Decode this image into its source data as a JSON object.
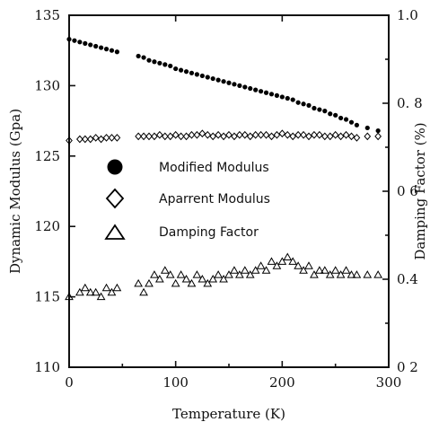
{
  "chart_data": {
    "type": "scatter",
    "title": "",
    "xlabel": "Temperature (K)",
    "ylabel": "Dynamic Modulus (Gpa)",
    "y2label": "Damping Factor (%)",
    "xlim": [
      0,
      300
    ],
    "ylim": [
      110,
      135
    ],
    "y2lim": [
      0.2,
      1.0
    ],
    "xticks": [
      0,
      100,
      200,
      300
    ],
    "xtick_labels": [
      "0",
      "100",
      "200",
      "300"
    ],
    "yticks": [
      110,
      115,
      120,
      125,
      130,
      135
    ],
    "ytick_labels": [
      "110",
      "115",
      "120",
      "125",
      "130",
      "135"
    ],
    "y2ticks": [
      0.2,
      0.4,
      0.6,
      0.8,
      1.0
    ],
    "y2tick_labels": [
      "0 2",
      "0.4",
      "0 6",
      "0. 8",
      "1.0"
    ],
    "grid": false,
    "legend_position": "left-center",
    "series": [
      {
        "name": "Modified Modulus",
        "marker": "filled-circle",
        "axis": "left",
        "x": [
          0,
          5,
          10,
          15,
          20,
          25,
          30,
          35,
          40,
          45,
          65,
          70,
          75,
          80,
          85,
          90,
          95,
          100,
          105,
          110,
          115,
          120,
          125,
          130,
          135,
          140,
          145,
          150,
          155,
          160,
          165,
          170,
          175,
          180,
          185,
          190,
          195,
          200,
          205,
          210,
          215,
          220,
          225,
          230,
          235,
          240,
          245,
          250,
          255,
          260,
          265,
          270,
          280,
          290
        ],
        "y": [
          133.3,
          133.2,
          133.1,
          133.0,
          132.9,
          132.8,
          132.7,
          132.6,
          132.5,
          132.4,
          132.1,
          132.0,
          131.8,
          131.7,
          131.6,
          131.5,
          131.4,
          131.2,
          131.1,
          131.0,
          130.9,
          130.8,
          130.7,
          130.6,
          130.5,
          130.4,
          130.3,
          130.2,
          130.1,
          130.0,
          129.9,
          129.8,
          129.7,
          129.6,
          129.5,
          129.4,
          129.3,
          129.2,
          129.1,
          129.0,
          128.8,
          128.7,
          128.6,
          128.4,
          128.3,
          128.2,
          128.0,
          127.9,
          127.7,
          127.6,
          127.4,
          127.2,
          127.0,
          126.8
        ]
      },
      {
        "name": "Aparrent Modulus",
        "marker": "open-diamond",
        "axis": "left",
        "x": [
          0,
          10,
          15,
          20,
          25,
          30,
          35,
          40,
          45,
          65,
          70,
          75,
          80,
          85,
          90,
          95,
          100,
          105,
          110,
          115,
          120,
          125,
          130,
          135,
          140,
          145,
          150,
          155,
          160,
          165,
          170,
          175,
          180,
          185,
          190,
          195,
          200,
          205,
          210,
          215,
          220,
          225,
          230,
          235,
          240,
          245,
          250,
          255,
          260,
          265,
          270,
          280,
          290
        ],
        "y": [
          126.1,
          126.2,
          126.2,
          126.2,
          126.3,
          126.2,
          126.3,
          126.3,
          126.3,
          126.4,
          126.4,
          126.4,
          126.4,
          126.5,
          126.4,
          126.4,
          126.5,
          126.4,
          126.4,
          126.5,
          126.5,
          126.6,
          126.5,
          126.4,
          126.5,
          126.4,
          126.5,
          126.4,
          126.5,
          126.5,
          126.4,
          126.5,
          126.5,
          126.5,
          126.4,
          126.5,
          126.6,
          126.5,
          126.4,
          126.5,
          126.5,
          126.4,
          126.5,
          126.5,
          126.4,
          126.4,
          126.5,
          126.4,
          126.5,
          126.4,
          126.3,
          126.4,
          126.4
        ]
      },
      {
        "name": "Damping Factor",
        "marker": "open-triangle",
        "axis": "right",
        "x": [
          0,
          10,
          15,
          20,
          25,
          30,
          35,
          40,
          45,
          65,
          70,
          75,
          80,
          85,
          90,
          95,
          100,
          105,
          110,
          115,
          120,
          125,
          130,
          135,
          140,
          145,
          150,
          155,
          160,
          165,
          170,
          175,
          180,
          185,
          190,
          195,
          200,
          205,
          210,
          215,
          220,
          225,
          230,
          235,
          240,
          245,
          250,
          255,
          260,
          265,
          270,
          280,
          290
        ],
        "y": [
          0.36,
          0.37,
          0.38,
          0.37,
          0.37,
          0.36,
          0.38,
          0.37,
          0.38,
          0.39,
          0.37,
          0.39,
          0.41,
          0.4,
          0.42,
          0.41,
          0.39,
          0.41,
          0.4,
          0.39,
          0.41,
          0.4,
          0.39,
          0.4,
          0.41,
          0.4,
          0.41,
          0.42,
          0.41,
          0.42,
          0.41,
          0.42,
          0.43,
          0.42,
          0.44,
          0.43,
          0.44,
          0.45,
          0.44,
          0.43,
          0.42,
          0.43,
          0.41,
          0.42,
          0.42,
          0.41,
          0.42,
          0.41,
          0.42,
          0.41,
          0.41,
          0.41,
          0.41
        ]
      }
    ]
  }
}
